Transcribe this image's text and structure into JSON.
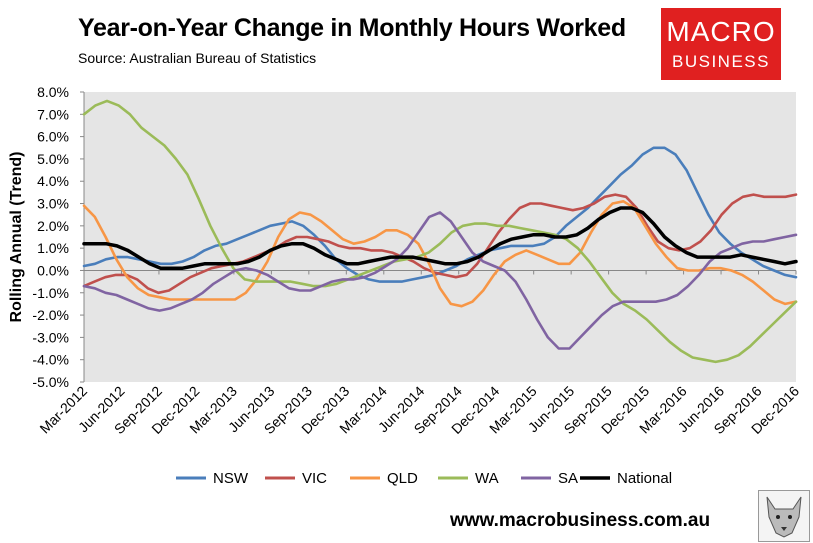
{
  "header": {
    "title": "Year-on-Year Change in Monthly Hours Worked",
    "source": "Source: Australian Bureau of Statistics"
  },
  "logo": {
    "line1": "MACRO",
    "line2": "BUSINESS"
  },
  "footer": {
    "url": "www.macrobusiness.com.au"
  },
  "mascot": {
    "icon": "wolf-icon"
  },
  "chart_data": {
    "type": "line",
    "title": "Year-on-Year Change in Monthly Hours Worked",
    "ylabel": "Rolling Annual (Trend)",
    "xlabel": "",
    "ylim": [
      -5,
      8
    ],
    "yticks": [
      8,
      7,
      6,
      5,
      4,
      3,
      2,
      1,
      0,
      -1,
      -2,
      -3,
      -4,
      -5
    ],
    "ytick_labels": [
      "8.0%",
      "7.0%",
      "6.0%",
      "5.0%",
      "4.0%",
      "3.0%",
      "2.0%",
      "1.0%",
      "0.0%",
      "-1.0%",
      "-2.0%",
      "-3.0%",
      "-4.0%",
      "-5.0%"
    ],
    "x_ticks": [
      "Mar-2012",
      "Jun-2012",
      "Sep-2012",
      "Dec-2012",
      "Mar-2013",
      "Jun-2013",
      "Sep-2013",
      "Dec-2013",
      "Mar-2014",
      "Jun-2014",
      "Sep-2014",
      "Dec-2014",
      "Mar-2015",
      "Jun-2015",
      "Sep-2015",
      "Dec-2015",
      "Mar-2016",
      "Jun-2016",
      "Sep-2016",
      "Dec-2016"
    ],
    "grid": false,
    "legend": "bottom",
    "series": [
      {
        "name": "NSW",
        "color": "#4a7ebb",
        "values": [
          0.2,
          0.3,
          0.5,
          0.6,
          0.6,
          0.5,
          0.4,
          0.3,
          0.3,
          0.4,
          0.6,
          0.9,
          1.1,
          1.2,
          1.4,
          1.6,
          1.8,
          2.0,
          2.1,
          2.2,
          2.0,
          1.6,
          1.1,
          0.5,
          0.1,
          -0.2,
          -0.4,
          -0.5,
          -0.5,
          -0.5,
          -0.4,
          -0.3,
          -0.2,
          0.0,
          0.2,
          0.5,
          0.7,
          0.9,
          1.0,
          1.1,
          1.1,
          1.1,
          1.2,
          1.5,
          2.0,
          2.4,
          2.8,
          3.3,
          3.8,
          4.3,
          4.7,
          5.2,
          5.5,
          5.5,
          5.2,
          4.5,
          3.5,
          2.5,
          1.7,
          1.2,
          0.8,
          0.5,
          0.2,
          0.0,
          -0.2,
          -0.3
        ]
      },
      {
        "name": "VIC",
        "color": "#c0504d",
        "values": [
          -0.7,
          -0.5,
          -0.3,
          -0.2,
          -0.2,
          -0.4,
          -0.8,
          -1.0,
          -0.9,
          -0.6,
          -0.3,
          -0.1,
          0.1,
          0.2,
          0.3,
          0.4,
          0.6,
          0.8,
          1.0,
          1.3,
          1.5,
          1.5,
          1.4,
          1.3,
          1.1,
          1.0,
          1.0,
          0.9,
          0.9,
          0.8,
          0.6,
          0.4,
          0.1,
          -0.1,
          -0.2,
          -0.3,
          -0.2,
          0.3,
          1.0,
          1.7,
          2.3,
          2.8,
          3.0,
          3.0,
          2.9,
          2.8,
          2.7,
          2.8,
          3.0,
          3.3,
          3.4,
          3.3,
          2.8,
          2.0,
          1.3,
          1.0,
          0.9,
          1.0,
          1.3,
          1.8,
          2.5,
          3.0,
          3.3,
          3.4,
          3.3,
          3.3,
          3.3,
          3.4
        ]
      },
      {
        "name": "QLD",
        "color": "#f79646",
        "values": [
          2.9,
          2.4,
          1.5,
          0.5,
          -0.3,
          -0.8,
          -1.1,
          -1.2,
          -1.3,
          -1.3,
          -1.3,
          -1.3,
          -1.3,
          -1.3,
          -1.3,
          -1.0,
          -0.4,
          0.4,
          1.5,
          2.3,
          2.6,
          2.5,
          2.2,
          1.8,
          1.4,
          1.2,
          1.3,
          1.5,
          1.8,
          1.8,
          1.6,
          1.2,
          0.3,
          -0.8,
          -1.5,
          -1.6,
          -1.4,
          -0.9,
          -0.2,
          0.4,
          0.7,
          0.9,
          0.7,
          0.5,
          0.3,
          0.3,
          0.8,
          1.7,
          2.5,
          3.0,
          3.1,
          2.8,
          2.0,
          1.2,
          0.6,
          0.1,
          0.0,
          0.0,
          0.1,
          0.1,
          0.0,
          -0.2,
          -0.5,
          -0.9,
          -1.3,
          -1.5,
          -1.4
        ]
      },
      {
        "name": "WA",
        "color": "#9bbb59",
        "values": [
          7.0,
          7.4,
          7.6,
          7.4,
          7.0,
          6.4,
          6.0,
          5.6,
          5.0,
          4.3,
          3.2,
          2.0,
          1.0,
          0.1,
          -0.4,
          -0.5,
          -0.5,
          -0.5,
          -0.5,
          -0.6,
          -0.7,
          -0.7,
          -0.6,
          -0.4,
          -0.2,
          0.0,
          0.2,
          0.4,
          0.5,
          0.6,
          0.8,
          1.2,
          1.7,
          2.0,
          2.1,
          2.1,
          2.0,
          2.0,
          1.9,
          1.8,
          1.7,
          1.6,
          1.4,
          1.0,
          0.4,
          -0.3,
          -1.0,
          -1.5,
          -1.8,
          -2.2,
          -2.7,
          -3.2,
          -3.6,
          -3.9,
          -4.0,
          -4.1,
          -4.0,
          -3.8,
          -3.4,
          -2.9,
          -2.4,
          -1.9,
          -1.4
        ]
      },
      {
        "name": "SA",
        "color": "#8064a2",
        "values": [
          -0.7,
          -0.8,
          -1.0,
          -1.1,
          -1.3,
          -1.5,
          -1.7,
          -1.8,
          -1.7,
          -1.5,
          -1.3,
          -1.0,
          -0.6,
          -0.3,
          0.0,
          0.1,
          0.0,
          -0.2,
          -0.5,
          -0.8,
          -0.9,
          -0.9,
          -0.7,
          -0.5,
          -0.4,
          -0.4,
          -0.3,
          -0.1,
          0.2,
          0.5,
          1.0,
          1.7,
          2.4,
          2.6,
          2.2,
          1.5,
          0.8,
          0.4,
          0.2,
          0.0,
          -0.5,
          -1.3,
          -2.2,
          -3.0,
          -3.5,
          -3.5,
          -3.0,
          -2.5,
          -2.0,
          -1.6,
          -1.4,
          -1.4,
          -1.4,
          -1.4,
          -1.3,
          -1.1,
          -0.7,
          -0.2,
          0.4,
          0.8,
          1.0,
          1.2,
          1.3,
          1.3,
          1.4,
          1.5,
          1.6
        ]
      },
      {
        "name": "National",
        "color": "#000000",
        "values": [
          1.2,
          1.2,
          1.2,
          1.1,
          0.9,
          0.6,
          0.3,
          0.1,
          0.1,
          0.1,
          0.2,
          0.3,
          0.3,
          0.3,
          0.3,
          0.4,
          0.6,
          0.9,
          1.1,
          1.2,
          1.2,
          1.0,
          0.7,
          0.5,
          0.3,
          0.3,
          0.4,
          0.5,
          0.6,
          0.6,
          0.6,
          0.5,
          0.4,
          0.3,
          0.3,
          0.4,
          0.6,
          0.9,
          1.2,
          1.4,
          1.5,
          1.6,
          1.6,
          1.5,
          1.5,
          1.6,
          1.9,
          2.3,
          2.6,
          2.8,
          2.8,
          2.6,
          2.1,
          1.5,
          1.1,
          0.8,
          0.6,
          0.6,
          0.6,
          0.6,
          0.7,
          0.6,
          0.5,
          0.4,
          0.3,
          0.4
        ]
      }
    ]
  }
}
